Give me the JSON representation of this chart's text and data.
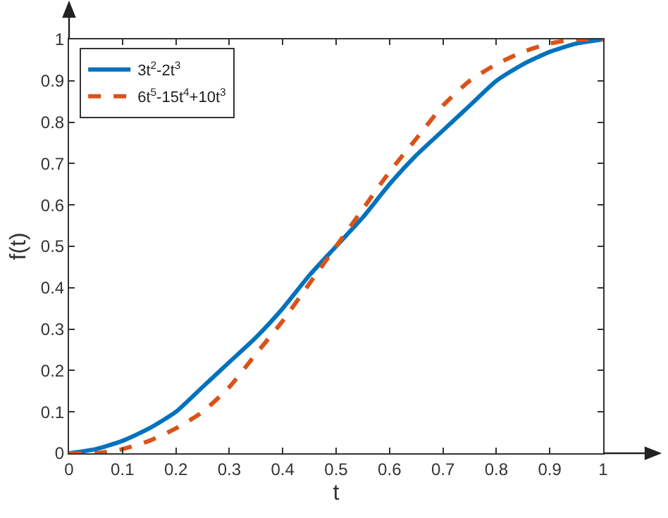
{
  "chart_data": {
    "type": "line",
    "xlabel": "t",
    "ylabel": "f(t)",
    "x": [
      0,
      0.05,
      0.1,
      0.15,
      0.2,
      0.25,
      0.3,
      0.35,
      0.4,
      0.45,
      0.5,
      0.55,
      0.6,
      0.65,
      0.7,
      0.75,
      0.8,
      0.85,
      0.9,
      0.95,
      1
    ],
    "series": [
      {
        "name": "3t$^{2}$-2t$^{3}$",
        "color": "#0072bd",
        "line_style": "solid",
        "values": [
          0,
          0.01,
          0.03,
          0.06,
          0.1,
          0.16,
          0.22,
          0.28,
          0.35,
          0.43,
          0.5,
          0.57,
          0.65,
          0.72,
          0.78,
          0.84,
          0.9,
          0.94,
          0.97,
          0.99,
          1
        ]
      },
      {
        "name": "6t$^{5}$-15t$^{4}$+10t$^{3}$",
        "color": "#d95319",
        "line_style": "dashed",
        "values": [
          0,
          0,
          0.01,
          0.03,
          0.06,
          0.1,
          0.16,
          0.24,
          0.32,
          0.41,
          0.5,
          0.59,
          0.68,
          0.76,
          0.84,
          0.9,
          0.94,
          0.97,
          0.99,
          1,
          1
        ]
      }
    ],
    "xlim": [
      0,
      1
    ],
    "xticks": [
      0,
      0.1,
      0.2,
      0.3,
      0.4,
      0.5,
      0.6,
      0.7,
      0.8,
      0.9,
      1
    ],
    "ylim": [
      0,
      1
    ],
    "yticks": [
      0,
      0.1,
      0.2,
      0.3,
      0.4,
      0.5,
      0.6,
      0.7,
      0.8,
      0.9,
      1
    ],
    "grid": false,
    "legend": "top left",
    "marker": "none"
  }
}
